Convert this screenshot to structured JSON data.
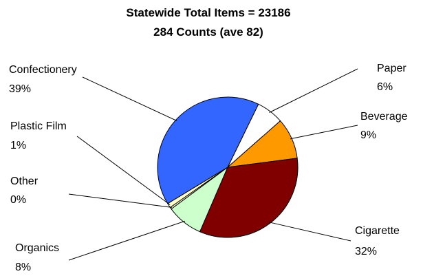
{
  "chart_data": {
    "type": "pie",
    "title": "Statewide Total Items = 23186",
    "subtitle": "284 Counts (ave 82)",
    "slices": [
      {
        "name": "Paper",
        "value": 6,
        "label": "6%",
        "color": "#ffffff"
      },
      {
        "name": "Beverage",
        "value": 9,
        "label": "9%",
        "color": "#ff9900"
      },
      {
        "name": "Cigarette",
        "value": 32,
        "label": "32%",
        "color": "#800000"
      },
      {
        "name": "Organics",
        "value": 8,
        "label": "8%",
        "color": "#ccffcc"
      },
      {
        "name": "Other",
        "value": 0,
        "label": "0%",
        "color": "#ffffcc"
      },
      {
        "name": "Plastic Film",
        "value": 1,
        "label": "1%",
        "color": "#ffffcc"
      },
      {
        "name": "Confectionery",
        "value": 39,
        "label": "39%",
        "color": "#3366ff"
      }
    ]
  }
}
